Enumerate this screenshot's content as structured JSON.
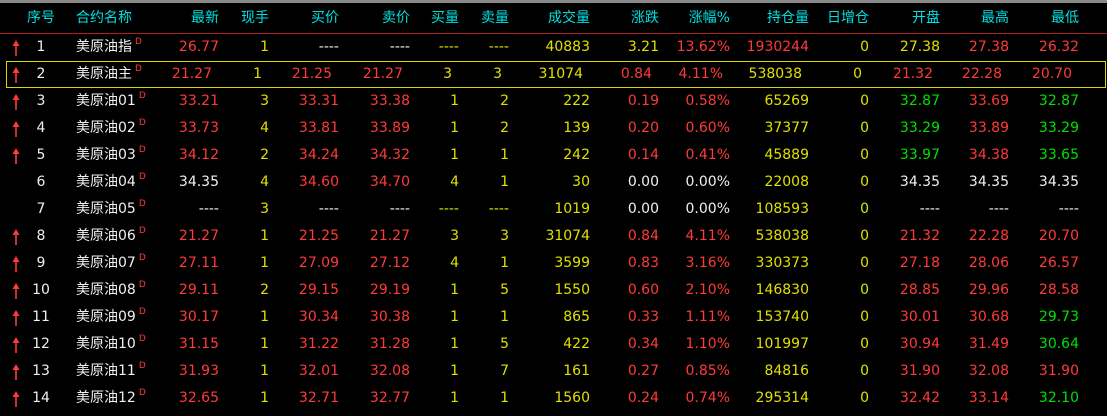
{
  "colors": {
    "r": "#ff3a3a",
    "g": "#00e000",
    "w": "#f0f0f0",
    "y": "#e0e000",
    "header": "#00e0e0"
  },
  "headers": [
    "序号",
    "合约名称",
    "最新",
    "现手",
    "买价",
    "卖价",
    "买量",
    "卖量",
    "成交量",
    "涨跌",
    "涨幅%",
    "持仓量",
    "日增仓",
    "开盘",
    "最高",
    "最低"
  ],
  "selected_row": 2,
  "rows": [
    {
      "up": true,
      "no": "1",
      "name": "美原油指",
      "tag": "D",
      "cells": [
        "26.77",
        "1",
        "----",
        "----",
        "----",
        "----",
        "40883",
        "3.21",
        "13.62%",
        "1930244",
        "0",
        "27.38",
        "27.38",
        "26.32"
      ],
      "colors": "ryww yyyrryyrrr"
    },
    {
      "up": true,
      "no": "2",
      "name": "美原油主",
      "tag": "D",
      "cells": [
        "21.27",
        "1",
        "21.25",
        "21.27",
        "3",
        "3",
        "31074",
        "0.84",
        "4.11%",
        "538038",
        "0",
        "21.32",
        "22.28",
        "20.70"
      ],
      "colors": "ryrryyyrryyrrr"
    },
    {
      "up": true,
      "no": "3",
      "name": "美原油01",
      "tag": "D",
      "cells": [
        "33.21",
        "3",
        "33.31",
        "33.38",
        "1",
        "2",
        "222",
        "0.19",
        "0.58%",
        "65269",
        "0",
        "32.87",
        "33.69",
        "32.87"
      ],
      "colors": "ryrryyyrryygrg"
    },
    {
      "up": true,
      "no": "4",
      "name": "美原油02",
      "tag": "D",
      "cells": [
        "33.73",
        "4",
        "33.81",
        "33.89",
        "1",
        "2",
        "139",
        "0.20",
        "0.60%",
        "37377",
        "0",
        "33.29",
        "33.89",
        "33.29"
      ],
      "colors": "ryrryyyrryygrg"
    },
    {
      "up": true,
      "no": "5",
      "name": "美原油03",
      "tag": "D",
      "cells": [
        "34.12",
        "2",
        "34.24",
        "34.32",
        "1",
        "1",
        "242",
        "0.14",
        "0.41%",
        "45889",
        "0",
        "33.97",
        "34.38",
        "33.65"
      ],
      "colors": "ryrryyyrryygrg"
    },
    {
      "up": false,
      "no": "6",
      "name": "美原油04",
      "tag": "D",
      "cells": [
        "34.35",
        "4",
        "34.60",
        "34.70",
        "4",
        "1",
        "30",
        "0.00",
        "0.00%",
        "22008",
        "0",
        "34.35",
        "34.35",
        "34.35"
      ],
      "colors": "wyrryyywwyywww"
    },
    {
      "up": false,
      "no": "7",
      "name": "美原油05",
      "tag": "D",
      "cells": [
        "----",
        "3",
        "----",
        "----",
        "----",
        "----",
        "1019",
        "0.00",
        "0.00%",
        "108593",
        "0",
        "----",
        "----",
        "----"
      ],
      "colors": "wywwyyywwyywww"
    },
    {
      "up": true,
      "no": "8",
      "name": "美原油06",
      "tag": "D",
      "cells": [
        "21.27",
        "1",
        "21.25",
        "21.27",
        "3",
        "3",
        "31074",
        "0.84",
        "4.11%",
        "538038",
        "0",
        "21.32",
        "22.28",
        "20.70"
      ],
      "colors": "ryrryyyrryyrrr"
    },
    {
      "up": true,
      "no": "9",
      "name": "美原油07",
      "tag": "D",
      "cells": [
        "27.11",
        "1",
        "27.09",
        "27.12",
        "4",
        "1",
        "3599",
        "0.83",
        "3.16%",
        "330373",
        "0",
        "27.18",
        "28.06",
        "26.57"
      ],
      "colors": "ryrryyyrryyrrr"
    },
    {
      "up": true,
      "no": "10",
      "name": "美原油08",
      "tag": "D",
      "cells": [
        "29.11",
        "2",
        "29.15",
        "29.19",
        "1",
        "5",
        "1550",
        "0.60",
        "2.10%",
        "146830",
        "0",
        "28.85",
        "29.96",
        "28.58"
      ],
      "colors": "ryrryyyrryyrrr"
    },
    {
      "up": true,
      "no": "11",
      "name": "美原油09",
      "tag": "D",
      "cells": [
        "30.17",
        "1",
        "30.34",
        "30.38",
        "1",
        "1",
        "865",
        "0.33",
        "1.11%",
        "153740",
        "0",
        "30.01",
        "30.68",
        "29.73"
      ],
      "colors": "ryrryyyrryyrrg"
    },
    {
      "up": true,
      "no": "12",
      "name": "美原油10",
      "tag": "D",
      "cells": [
        "31.15",
        "1",
        "31.22",
        "31.28",
        "1",
        "5",
        "422",
        "0.34",
        "1.10%",
        "101997",
        "0",
        "30.94",
        "31.49",
        "30.64"
      ],
      "colors": "ryrryyyrryyrrg"
    },
    {
      "up": true,
      "no": "13",
      "name": "美原油11",
      "tag": "D",
      "cells": [
        "31.93",
        "1",
        "32.01",
        "32.08",
        "1",
        "7",
        "161",
        "0.27",
        "0.85%",
        "84816",
        "0",
        "31.90",
        "32.08",
        "31.90"
      ],
      "colors": "ryrryyyrryyrrr"
    },
    {
      "up": true,
      "no": "14",
      "name": "美原油12",
      "tag": "D",
      "cells": [
        "32.65",
        "1",
        "32.71",
        "32.77",
        "1",
        "1",
        "1560",
        "0.24",
        "0.74%",
        "295314",
        "0",
        "32.42",
        "33.14",
        "32.10"
      ],
      "colors": "ryrryyyrryyrrg"
    }
  ]
}
